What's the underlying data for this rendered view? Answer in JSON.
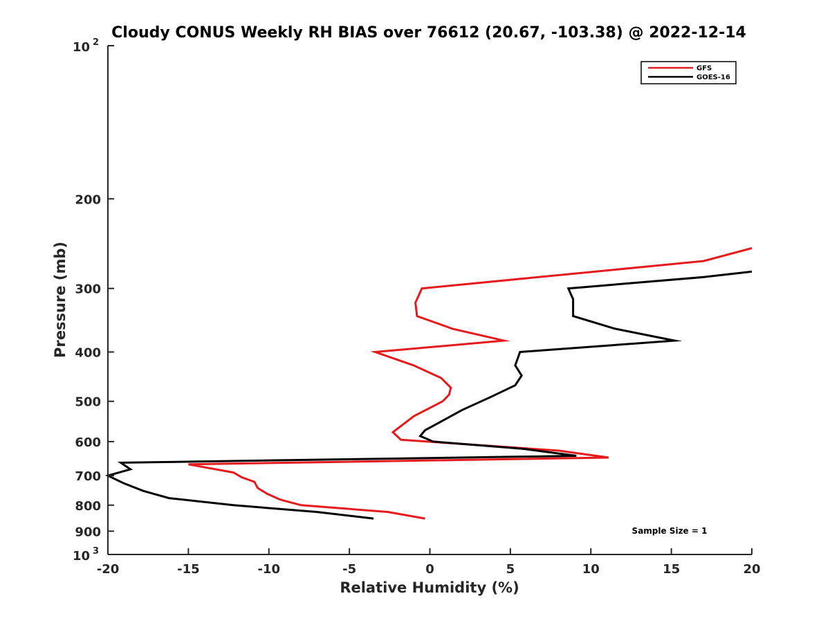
{
  "chart_data": {
    "type": "line",
    "title": "Cloudy CONUS Weekly RH BIAS over 76612 (20.67, -103.38) @ 2022-12-14",
    "xlabel": "Relative Humidity (%)",
    "ylabel": "Pressure (mb)",
    "xlim": [
      -20,
      20
    ],
    "ylim": [
      100,
      1000
    ],
    "yscale": "log",
    "y_reversed": true,
    "grid": false,
    "legend_position": "top-right",
    "xticks": [
      -20,
      -15,
      -10,
      -5,
      0,
      5,
      10,
      15,
      20
    ],
    "xtick_labels": [
      "-20",
      "-15",
      "-10",
      "-5",
      "0",
      "5",
      "10",
      "15",
      "20"
    ],
    "yticks": [
      {
        "value": 100,
        "base": "10",
        "exp": "2"
      },
      {
        "value": 200,
        "label": "200"
      },
      {
        "value": 300,
        "label": "300"
      },
      {
        "value": 400,
        "label": "400"
      },
      {
        "value": 500,
        "label": "500"
      },
      {
        "value": 600,
        "label": "600"
      },
      {
        "value": 700,
        "label": "700"
      },
      {
        "value": 800,
        "label": "800"
      },
      {
        "value": 900,
        "label": "900"
      },
      {
        "value": 1000,
        "base": "10",
        "exp": "3"
      }
    ],
    "annotation": "Sample Size = 1",
    "series": [
      {
        "name": "GFS",
        "color": "#e41a1c",
        "points": [
          {
            "x": 20.0,
            "y": 250
          },
          {
            "x": 17.0,
            "y": 265
          },
          {
            "x": -0.5,
            "y": 300
          },
          {
            "x": -0.9,
            "y": 320
          },
          {
            "x": -0.8,
            "y": 340
          },
          {
            "x": 1.4,
            "y": 360
          },
          {
            "x": 4.6,
            "y": 380
          },
          {
            "x": -3.4,
            "y": 400
          },
          {
            "x": -1.0,
            "y": 425
          },
          {
            "x": 0.7,
            "y": 450
          },
          {
            "x": 1.3,
            "y": 470
          },
          {
            "x": 1.2,
            "y": 485
          },
          {
            "x": 0.8,
            "y": 500
          },
          {
            "x": -1.0,
            "y": 535
          },
          {
            "x": -2.3,
            "y": 575
          },
          {
            "x": -1.8,
            "y": 595
          },
          {
            "x": 8.0,
            "y": 625
          },
          {
            "x": 11.1,
            "y": 645
          },
          {
            "x": -15.0,
            "y": 665
          },
          {
            "x": -12.2,
            "y": 690
          },
          {
            "x": -11.7,
            "y": 705
          },
          {
            "x": -10.9,
            "y": 720
          },
          {
            "x": -10.7,
            "y": 740
          },
          {
            "x": -10.1,
            "y": 760
          },
          {
            "x": -9.3,
            "y": 780
          },
          {
            "x": -8.0,
            "y": 800
          },
          {
            "x": -2.6,
            "y": 825
          },
          {
            "x": -0.3,
            "y": 850
          }
        ]
      },
      {
        "name": "GOES-16",
        "color": "#000000",
        "points": [
          {
            "x": 20.0,
            "y": 278
          },
          {
            "x": 17.0,
            "y": 285
          },
          {
            "x": 8.6,
            "y": 300
          },
          {
            "x": 8.9,
            "y": 315
          },
          {
            "x": 8.9,
            "y": 340
          },
          {
            "x": 11.5,
            "y": 360
          },
          {
            "x": 15.2,
            "y": 380
          },
          {
            "x": 5.6,
            "y": 400
          },
          {
            "x": 5.3,
            "y": 425
          },
          {
            "x": 5.7,
            "y": 445
          },
          {
            "x": 5.3,
            "y": 465
          },
          {
            "x": 3.8,
            "y": 490
          },
          {
            "x": 2.0,
            "y": 520
          },
          {
            "x": 0.6,
            "y": 550
          },
          {
            "x": -0.3,
            "y": 570
          },
          {
            "x": -0.6,
            "y": 585
          },
          {
            "x": 0.2,
            "y": 600
          },
          {
            "x": 5.8,
            "y": 620
          },
          {
            "x": 9.1,
            "y": 640
          },
          {
            "x": -19.2,
            "y": 660
          },
          {
            "x": -18.6,
            "y": 680
          },
          {
            "x": -20.0,
            "y": 700
          },
          {
            "x": -19.0,
            "y": 725
          },
          {
            "x": -17.8,
            "y": 750
          },
          {
            "x": -16.2,
            "y": 775
          },
          {
            "x": -12.2,
            "y": 800
          },
          {
            "x": -7.0,
            "y": 825
          },
          {
            "x": -3.5,
            "y": 850
          }
        ]
      }
    ]
  }
}
